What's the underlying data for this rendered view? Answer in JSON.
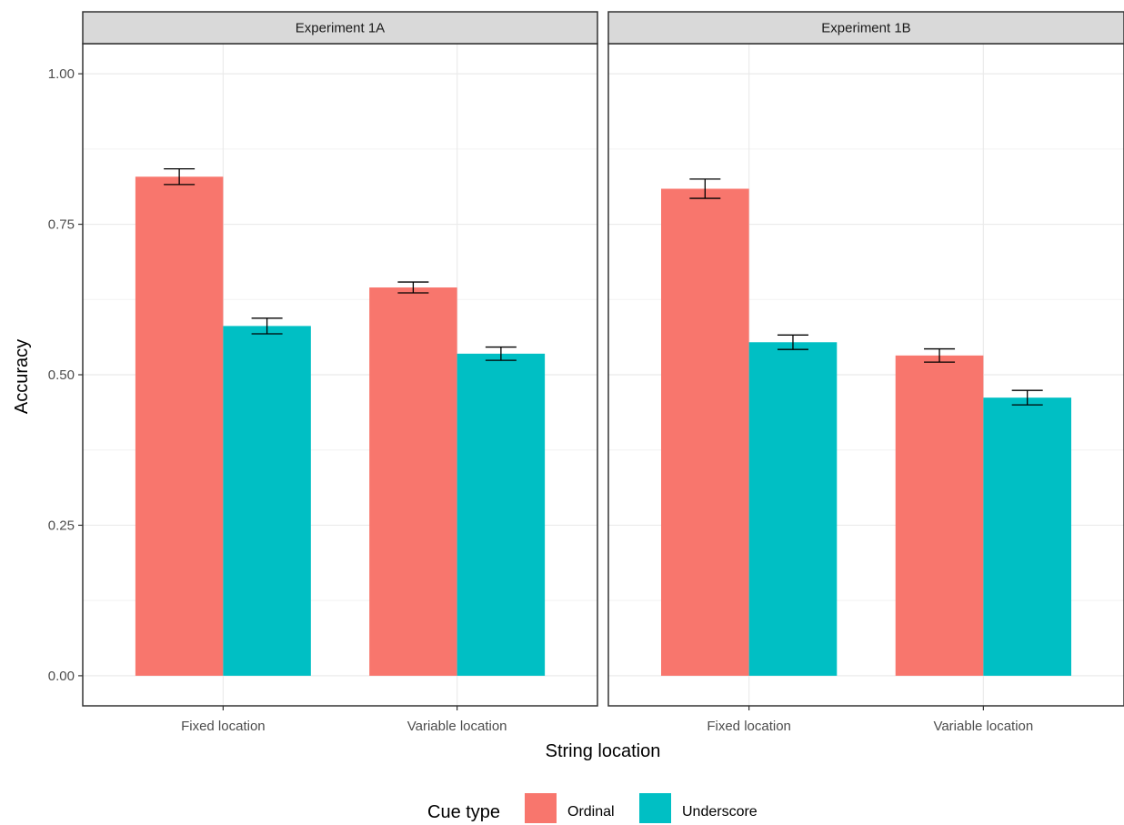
{
  "chart_data": {
    "type": "bar",
    "facets": [
      {
        "title": "Experiment 1A",
        "categories": [
          "Fixed location",
          "Variable location"
        ],
        "series": [
          {
            "name": "Ordinal",
            "values": [
              0.829,
              0.645
            ],
            "error": [
              0.013,
              0.009
            ]
          },
          {
            "name": "Underscore",
            "values": [
              0.581,
              0.535
            ],
            "error": [
              0.013,
              0.011
            ]
          }
        ]
      },
      {
        "title": "Experiment 1B",
        "categories": [
          "Fixed location",
          "Variable location"
        ],
        "series": [
          {
            "name": "Ordinal",
            "values": [
              0.809,
              0.532
            ],
            "error": [
              0.016,
              0.011
            ]
          },
          {
            "name": "Underscore",
            "values": [
              0.554,
              0.462
            ],
            "error": [
              0.012,
              0.012
            ]
          }
        ]
      }
    ],
    "xlabel": "String location",
    "ylabel": "Accuracy",
    "ylim": [
      -0.05,
      1.05
    ],
    "yticks": [
      0,
      0.25,
      0.5,
      0.75,
      1
    ],
    "ytick_labels": [
      "0.00",
      "0.25",
      "0.50",
      "0.75",
      "1.00"
    ],
    "grid": true,
    "legend": {
      "title": "Cue type",
      "placement": "bottom",
      "entries": [
        {
          "label": "Ordinal",
          "color": "#F8766D"
        },
        {
          "label": "Underscore",
          "color": "#00BFC4"
        }
      ]
    }
  }
}
